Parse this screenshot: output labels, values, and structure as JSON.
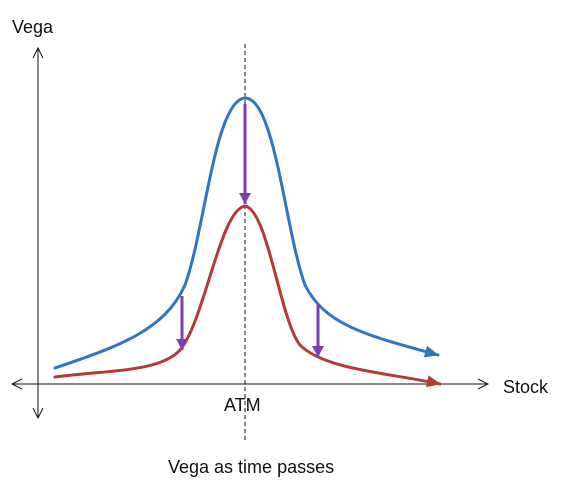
{
  "diagram": {
    "y_axis_label": "Vega",
    "x_axis_label": "Stock",
    "atm_label": "ATM",
    "caption": "Vega as time passes",
    "colors": {
      "upper_curve": "#2e75c4",
      "lower_curve": "#b23c35",
      "decay_arrows": "#7b3fb0",
      "axes": "#111111",
      "atm_line": "#111111"
    }
  }
}
